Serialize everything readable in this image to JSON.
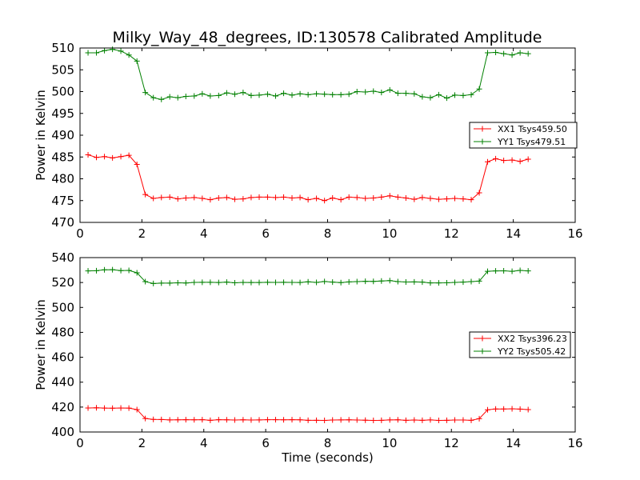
{
  "figure_title": "Milky_Way_48_degrees, ID:130578 Calibrated Amplitude",
  "colors": {
    "xx": "#ff0000",
    "yy": "#008000",
    "frame": "#000000"
  },
  "chart_data": [
    {
      "type": "line",
      "title": "Milky_Way_48_degrees, ID:130578 Calibrated Amplitude",
      "xlabel": "",
      "ylabel": "Power in Kelvin",
      "xlim": [
        0,
        16
      ],
      "ylim": [
        470,
        510
      ],
      "xticks": [
        0,
        2,
        4,
        6,
        8,
        10,
        12,
        14,
        16
      ],
      "yticks": [
        470,
        475,
        480,
        485,
        490,
        495,
        500,
        505,
        510
      ],
      "grid": false,
      "legend_position": "right",
      "x": [
        0.26,
        0.53,
        0.79,
        1.05,
        1.32,
        1.58,
        1.84,
        2.11,
        2.37,
        2.63,
        2.9,
        3.16,
        3.42,
        3.69,
        3.95,
        4.21,
        4.48,
        4.74,
        5.0,
        5.27,
        5.53,
        5.79,
        6.06,
        6.32,
        6.58,
        6.85,
        7.11,
        7.37,
        7.64,
        7.9,
        8.16,
        8.43,
        8.69,
        8.95,
        9.22,
        9.48,
        9.74,
        10.01,
        10.27,
        10.53,
        10.8,
        11.06,
        11.32,
        11.59,
        11.85,
        12.11,
        12.38,
        12.64,
        12.9,
        13.17,
        13.43,
        13.69,
        13.96,
        14.22,
        14.48
      ],
      "series": [
        {
          "name": "XX1 Tsys459.50",
          "color": "#ff0000",
          "values": [
            485.5,
            484.9,
            485.1,
            484.8,
            485.1,
            485.4,
            483.3,
            476.4,
            475.5,
            475.7,
            475.8,
            475.4,
            475.6,
            475.7,
            475.5,
            475.2,
            475.6,
            475.7,
            475.3,
            475.4,
            475.7,
            475.8,
            475.8,
            475.7,
            475.8,
            475.6,
            475.7,
            475.2,
            475.5,
            475.0,
            475.6,
            475.2,
            475.8,
            475.7,
            475.5,
            475.6,
            475.8,
            476.1,
            475.8,
            475.6,
            475.3,
            475.7,
            475.5,
            475.3,
            475.4,
            475.5,
            475.4,
            475.2,
            476.8,
            483.9,
            484.6,
            484.2,
            484.3,
            484.0,
            484.5
          ]
        },
        {
          "name": "YY1 Tsys479.51",
          "color": "#008000",
          "values": [
            508.9,
            508.9,
            509.4,
            509.7,
            509.3,
            508.4,
            507.0,
            499.8,
            498.6,
            498.2,
            498.8,
            498.6,
            498.9,
            499.0,
            499.5,
            499.0,
            499.1,
            499.7,
            499.4,
            499.8,
            499.1,
            499.2,
            499.4,
            499.0,
            499.6,
            499.2,
            499.5,
            499.3,
            499.5,
            499.4,
            499.3,
            499.3,
            499.4,
            500.0,
            499.9,
            500.1,
            499.8,
            500.4,
            499.6,
            499.6,
            499.5,
            498.8,
            498.6,
            499.3,
            498.5,
            499.2,
            499.1,
            499.3,
            500.6,
            508.9,
            509.0,
            508.7,
            508.4,
            508.9,
            508.7
          ]
        }
      ]
    },
    {
      "type": "line",
      "title": "",
      "xlabel": "Time (seconds)",
      "ylabel": "Power in Kelvin",
      "xlim": [
        0,
        16
      ],
      "ylim": [
        400,
        540
      ],
      "xticks": [
        0,
        2,
        4,
        6,
        8,
        10,
        12,
        14,
        16
      ],
      "yticks": [
        400,
        420,
        440,
        460,
        480,
        500,
        520,
        540
      ],
      "grid": false,
      "legend_position": "right",
      "x": [
        0.26,
        0.53,
        0.79,
        1.05,
        1.32,
        1.58,
        1.84,
        2.11,
        2.37,
        2.63,
        2.9,
        3.16,
        3.42,
        3.69,
        3.95,
        4.21,
        4.48,
        4.74,
        5.0,
        5.27,
        5.53,
        5.79,
        6.06,
        6.32,
        6.58,
        6.85,
        7.11,
        7.37,
        7.64,
        7.9,
        8.16,
        8.43,
        8.69,
        8.95,
        9.22,
        9.48,
        9.74,
        10.01,
        10.27,
        10.53,
        10.8,
        11.06,
        11.32,
        11.59,
        11.85,
        12.11,
        12.38,
        12.64,
        12.9,
        13.17,
        13.43,
        13.69,
        13.96,
        14.22,
        14.48
      ],
      "series": [
        {
          "name": "XX2 Tsys396.23",
          "color": "#ff0000",
          "values": [
            419.3,
            419.4,
            419.2,
            419.1,
            419.3,
            419.2,
            418.0,
            410.8,
            410.1,
            410.0,
            409.7,
            409.8,
            409.9,
            409.8,
            409.9,
            409.4,
            409.9,
            409.8,
            409.6,
            409.8,
            409.6,
            409.7,
            409.9,
            409.9,
            409.8,
            409.9,
            409.8,
            409.4,
            409.4,
            409.3,
            409.6,
            409.7,
            409.8,
            409.6,
            409.5,
            409.3,
            409.4,
            409.7,
            409.8,
            409.4,
            409.6,
            409.4,
            409.7,
            409.3,
            409.4,
            409.6,
            409.6,
            409.4,
            410.7,
            417.8,
            418.5,
            418.5,
            418.6,
            418.4,
            418.0
          ]
        },
        {
          "name": "YY2 Tsys505.42",
          "color": "#008000",
          "values": [
            529.3,
            529.5,
            530.2,
            530.3,
            529.6,
            529.7,
            527.8,
            520.7,
            519.2,
            519.5,
            519.5,
            519.8,
            519.6,
            520.1,
            520.2,
            520.2,
            520.0,
            520.3,
            519.8,
            520.1,
            520.0,
            520.0,
            520.2,
            520.1,
            520.2,
            520.1,
            520.0,
            520.6,
            520.1,
            520.8,
            520.3,
            519.9,
            520.5,
            520.7,
            521.0,
            520.9,
            521.2,
            521.5,
            520.7,
            520.4,
            520.5,
            520.3,
            519.7,
            519.7,
            519.8,
            520.1,
            520.3,
            520.7,
            521.1,
            529.0,
            529.3,
            529.4,
            529.0,
            529.7,
            529.3
          ]
        }
      ]
    }
  ]
}
